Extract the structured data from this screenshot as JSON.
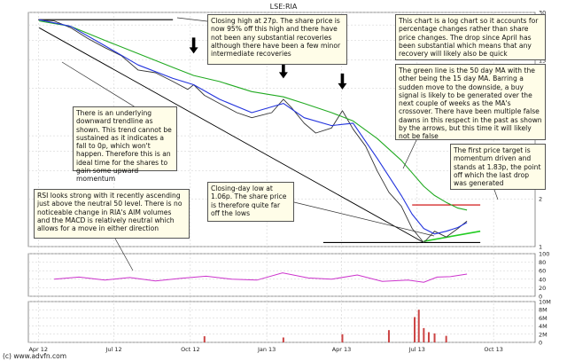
{
  "chart_data": {
    "title": "LSE:RIA",
    "source": "(c) www.advfn.com",
    "price_panel": {
      "type": "line",
      "scale": "log",
      "ylim": [
        1,
        30
      ],
      "y_ticks": [
        1,
        2,
        3,
        4,
        5,
        10,
        15,
        20,
        25,
        30
      ],
      "series": [
        {
          "key": "price",
          "color": "#333333",
          "x": [
            "2012-04-02",
            "2012-04-20",
            "2012-05-10",
            "2012-05-31",
            "2012-06-20",
            "2012-07-10",
            "2012-07-30",
            "2012-08-20",
            "2012-09-10",
            "2012-09-28",
            "2012-10-05",
            "2012-10-18",
            "2012-11-05",
            "2012-11-26",
            "2012-12-14",
            "2013-01-07",
            "2013-01-21",
            "2013-01-31",
            "2013-02-15",
            "2013-03-01",
            "2013-03-20",
            "2013-04-02",
            "2013-04-15",
            "2013-04-30",
            "2013-05-14",
            "2013-05-28",
            "2013-06-12",
            "2013-06-25",
            "2013-07-09",
            "2013-07-22",
            "2013-08-05",
            "2013-08-19",
            "2013-08-30"
          ],
          "y": [
            27.0,
            26.5,
            24.0,
            20.5,
            18.0,
            16.0,
            13.0,
            12.5,
            11.0,
            9.8,
            10.5,
            9.0,
            8.0,
            7.0,
            6.5,
            7.0,
            8.5,
            7.5,
            6.0,
            5.2,
            5.6,
            7.2,
            5.5,
            4.3,
            3.0,
            2.2,
            1.8,
            1.3,
            1.06,
            1.25,
            1.15,
            1.3,
            1.45
          ]
        },
        {
          "key": "ma50",
          "color": "#22aa22",
          "x": [
            "2012-04-02",
            "2012-05-10",
            "2012-06-20",
            "2012-07-30",
            "2012-09-10",
            "2012-10-05",
            "2012-11-05",
            "2012-12-14",
            "2013-01-21",
            "2013-02-15",
            "2013-03-20",
            "2013-04-15",
            "2013-05-14",
            "2013-06-12",
            "2013-07-09",
            "2013-07-22",
            "2013-08-05",
            "2013-08-19",
            "2013-08-30"
          ],
          "y": [
            26.5,
            24.5,
            20.0,
            16.5,
            13.5,
            12.0,
            11.0,
            9.5,
            8.8,
            8.0,
            7.0,
            6.2,
            4.8,
            3.5,
            2.4,
            2.1,
            1.9,
            1.75,
            1.7
          ]
        },
        {
          "key": "ma15",
          "color": "#2233dd",
          "x": [
            "2012-04-02",
            "2012-05-10",
            "2012-06-20",
            "2012-07-30",
            "2012-09-10",
            "2012-10-05",
            "2012-11-05",
            "2012-12-14",
            "2013-01-21",
            "2013-02-15",
            "2013-03-20",
            "2013-04-15",
            "2013-05-14",
            "2013-06-12",
            "2013-06-25",
            "2013-07-09",
            "2013-07-22",
            "2013-08-05",
            "2013-08-19",
            "2013-08-30"
          ],
          "y": [
            27.0,
            24.5,
            18.5,
            14.0,
            11.5,
            10.5,
            8.5,
            7.0,
            8.0,
            6.5,
            5.8,
            6.0,
            3.6,
            2.1,
            1.6,
            1.3,
            1.2,
            1.25,
            1.32,
            1.42
          ]
        }
      ]
    },
    "rsi_panel": {
      "type": "line",
      "ylim": [
        0,
        100
      ],
      "y_ticks": [
        0,
        20,
        40,
        60,
        80,
        100
      ],
      "x": [
        "2012-04-20",
        "2012-05-20",
        "2012-06-20",
        "2012-07-20",
        "2012-08-20",
        "2012-09-20",
        "2012-10-20",
        "2012-11-20",
        "2012-12-20",
        "2013-01-20",
        "2013-02-20",
        "2013-03-20",
        "2013-04-20",
        "2013-05-20",
        "2013-06-20",
        "2013-07-09",
        "2013-07-25",
        "2013-08-10",
        "2013-08-30"
      ],
      "y": [
        40,
        45,
        38,
        44,
        36,
        42,
        47,
        40,
        38,
        55,
        43,
        40,
        50,
        35,
        38,
        33,
        45,
        46,
        52
      ]
    },
    "volume_panel": {
      "type": "bar",
      "ylim": [
        0,
        10000000
      ],
      "y_tick_labels": [
        "0",
        "2M",
        "4M",
        "6M",
        "8M",
        "10M"
      ],
      "x": [
        "2012-10-18",
        "2013-01-21",
        "2013-04-02",
        "2013-05-28",
        "2013-06-28",
        "2013-07-03",
        "2013-07-09",
        "2013-07-15",
        "2013-07-22",
        "2013-08-05"
      ],
      "y": [
        1500000,
        1200000,
        2000000,
        3000000,
        6200000,
        8000000,
        3500000,
        2500000,
        2200000,
        1600000
      ]
    },
    "x_ticks": [
      {
        "date": "2012-04-01",
        "label": "Apr 12"
      },
      {
        "date": "2012-07-01",
        "label": "Jul 12"
      },
      {
        "date": "2012-10-01",
        "label": "Oct 12"
      },
      {
        "date": "2013-01-01",
        "label": "Jan 13"
      },
      {
        "date": "2013-04-01",
        "label": "Apr 13"
      },
      {
        "date": "2013-07-01",
        "label": "Jul 13"
      },
      {
        "date": "2013-10-01",
        "label": "Oct 13"
      }
    ],
    "x_range": [
      "2012-03-20",
      "2013-11-20"
    ],
    "annotations": [
      {
        "key": "closing_high",
        "text": "Closing high at 27p. The share price is now 95% off this high and there have not been any substantial recoveries although there have been a few minor intermediate recoveries"
      },
      {
        "key": "log_chart",
        "text": "This chart is a log chart so it accounts for percentage changes rather than share price changes. The drop since April has been substantial which means that any recovery will likely also be quick"
      },
      {
        "key": "moving_averages",
        "text": "The green line is the 50 day MA with the other being the 15 day MA. Barring a sudden move to the downside, a buy signal is likely to be generated over the next couple of weeks as the MA's crossover. There have been multiple false dawns in this respect in the past as shown by the arrows, but this time it will likely not be false"
      },
      {
        "key": "trendline",
        "text": "There is an underlying downward trendline as shown. This trend cannot be sustained as it indicates a fall to 0p, which won't happen. Therefore this is an ideal time for the shares to gain some upward momentum"
      },
      {
        "key": "price_target",
        "text": "The first price target is momentum driven and stands at 1.83p, the point off which the last drop was generated"
      },
      {
        "key": "closing_low",
        "text": "Closing-day low at 1.06p. The share price is therefore quite far off the lows"
      },
      {
        "key": "rsi",
        "text": "RSI looks strong with it recently ascending just above the neutral 50 level. There is no noticeable change in RIA's AIM volumes and the MACD is relatively neutral which allows for a move in either direction"
      }
    ],
    "levels": [
      {
        "key": "high",
        "value": 27,
        "from": "2012-04-01",
        "to": "2012-09-10",
        "color": "#000000"
      },
      {
        "key": "target",
        "value": 1.83,
        "from": "2013-06-25",
        "to": "2013-09-15",
        "color": "#cc0000"
      },
      {
        "key": "low",
        "value": 1.06,
        "from": "2013-03-10",
        "to": "2013-09-15",
        "color": "#000000"
      }
    ],
    "trendline": {
      "from": {
        "date": "2012-04-02",
        "value": 24
      },
      "to": {
        "date": "2013-07-09",
        "value": 1.06
      },
      "color": "#000000"
    },
    "support_line": {
      "from": {
        "date": "2013-07-09",
        "value": 1.08
      },
      "to": {
        "date": "2013-09-15",
        "value": 1.25
      },
      "color": "#22cc22"
    },
    "false_signal_arrows": [
      {
        "date": "2012-10-05",
        "value": 16.5
      },
      {
        "date": "2013-01-21",
        "value": 11.5
      },
      {
        "date": "2013-04-02",
        "value": 9.8
      }
    ]
  }
}
